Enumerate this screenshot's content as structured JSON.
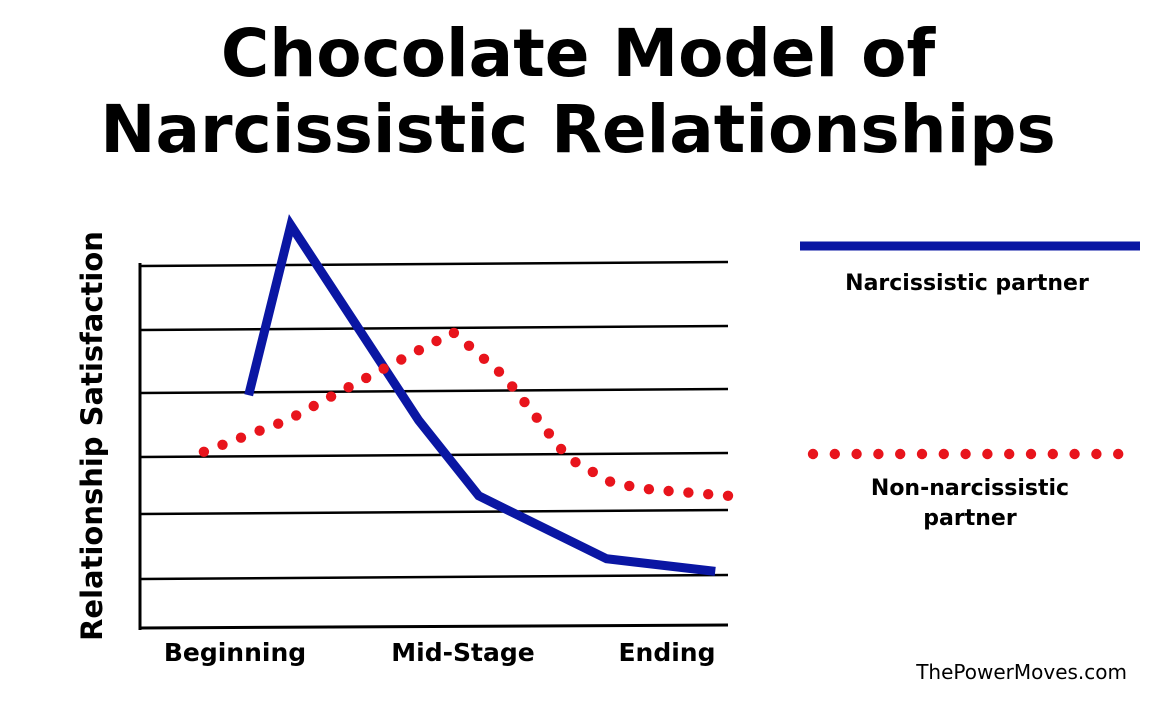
{
  "chart_data": {
    "type": "line",
    "title_lines": [
      "Chocolate Model of",
      "Narcissistic Relationships"
    ],
    "xlabel": "",
    "ylabel": "Relationship Satisfaction",
    "categories": [
      "Beginning",
      "Mid-Stage",
      "Ending"
    ],
    "xlim": [
      0,
      4.6
    ],
    "ylim": [
      0,
      5.8
    ],
    "grid": true,
    "series": [
      {
        "name": "Narcissistic partner",
        "style": "solid",
        "color": "#0a16a3",
        "x": [
          0.85,
          1.18,
          2.18,
          2.65,
          3.65,
          4.5
        ],
        "y": [
          3.7,
          6.4,
          3.3,
          2.1,
          1.1,
          0.9
        ]
      },
      {
        "name": "Non-narcissistic partner",
        "style": "dotted",
        "color": "#e8141c",
        "x": [
          0.5,
          1.15,
          1.7,
          2.45,
          2.85,
          3.35,
          3.7,
          4.0,
          4.6
        ],
        "y": [
          2.8,
          3.3,
          3.9,
          4.7,
          4.0,
          2.7,
          2.3,
          2.2,
          2.1
        ]
      }
    ],
    "legend_position": "right"
  },
  "watermark": "ThePowerMoves.com"
}
